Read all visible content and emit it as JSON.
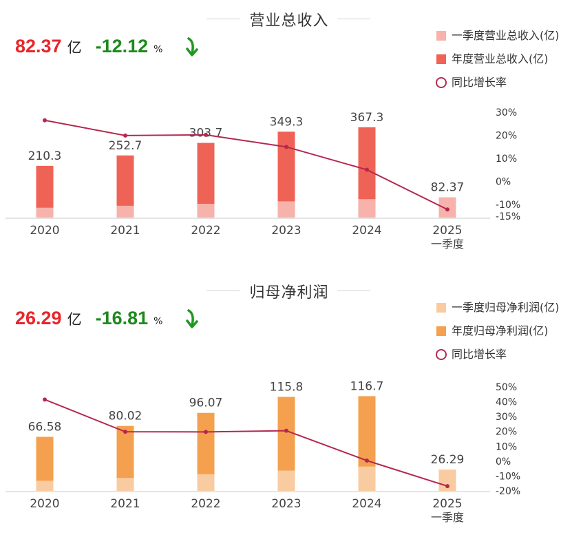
{
  "unit_yi": "亿",
  "unit_pct": "%",
  "chart_data": [
    {
      "type": "bar",
      "title": "营业总收入",
      "kpi": {
        "value": "82.37",
        "change": "-12.12"
      },
      "categories": [
        "2020",
        "2021",
        "2022",
        "2023",
        "2024",
        "2025"
      ],
      "category_sublabels": [
        "",
        "",
        "",
        "",
        "",
        "一季度"
      ],
      "series": [
        {
          "name": "一季度营业总收入(亿)",
          "type": "bar",
          "values": [
            40,
            48,
            56,
            66,
            75,
            82.37
          ],
          "color": "#f7b2ac"
        },
        {
          "name": "年度营业总收入(亿)",
          "type": "bar",
          "values": [
            210.3,
            252.7,
            303.7,
            349.3,
            367.3,
            null
          ],
          "color": "#ef6357"
        },
        {
          "name": "同比增长率",
          "type": "line",
          "axis": "right",
          "values": [
            26.5,
            19.9,
            20.2,
            15.0,
            5.1,
            -12.1
          ],
          "color": "#b4284f"
        }
      ],
      "data_labels": [
        "210.3",
        "252.7",
        "303.7",
        "349.3",
        "367.3",
        "82.37"
      ],
      "right_axis": {
        "ticks": [
          "30%",
          "20%",
          "10%",
          "0%",
          "-10%",
          "-15%"
        ],
        "values": [
          30,
          20,
          10,
          0,
          -10,
          -15
        ],
        "range": [
          -15,
          30
        ]
      },
      "ylim": [
        0,
        420
      ],
      "legend": "top-right",
      "grid": false
    },
    {
      "type": "bar",
      "title": "归母净利润",
      "kpi": {
        "value": "26.29",
        "change": "-16.81"
      },
      "categories": [
        "2020",
        "2021",
        "2022",
        "2023",
        "2024",
        "2025"
      ],
      "category_sublabels": [
        "",
        "",
        "",
        "",
        "",
        "一季度"
      ],
      "series": [
        {
          "name": "一季度归母净利润(亿)",
          "type": "bar",
          "values": [
            12.5,
            16,
            20.5,
            25,
            30,
            26.29
          ],
          "color": "#f9cba0"
        },
        {
          "name": "年度归母净利润(亿)",
          "type": "bar",
          "values": [
            66.58,
            80.02,
            96.07,
            115.8,
            116.7,
            null
          ],
          "color": "#f4a04f"
        },
        {
          "name": "同比增长率",
          "type": "line",
          "axis": "right",
          "values": [
            41.5,
            19.8,
            19.7,
            20.5,
            0.4,
            -16.81
          ],
          "color": "#b4284f"
        }
      ],
      "data_labels": [
        "66.58",
        "80.02",
        "96.07",
        "115.8",
        "116.7",
        "26.29"
      ],
      "right_axis": {
        "ticks": [
          "50%",
          "40%",
          "30%",
          "20%",
          "10%",
          "0%",
          "-10%",
          "-20%"
        ],
        "values": [
          50,
          40,
          30,
          20,
          10,
          0,
          -10,
          -20
        ],
        "range": [
          -20,
          50
        ]
      },
      "ylim": [
        0,
        134
      ],
      "legend": "top-right",
      "grid": false
    }
  ]
}
